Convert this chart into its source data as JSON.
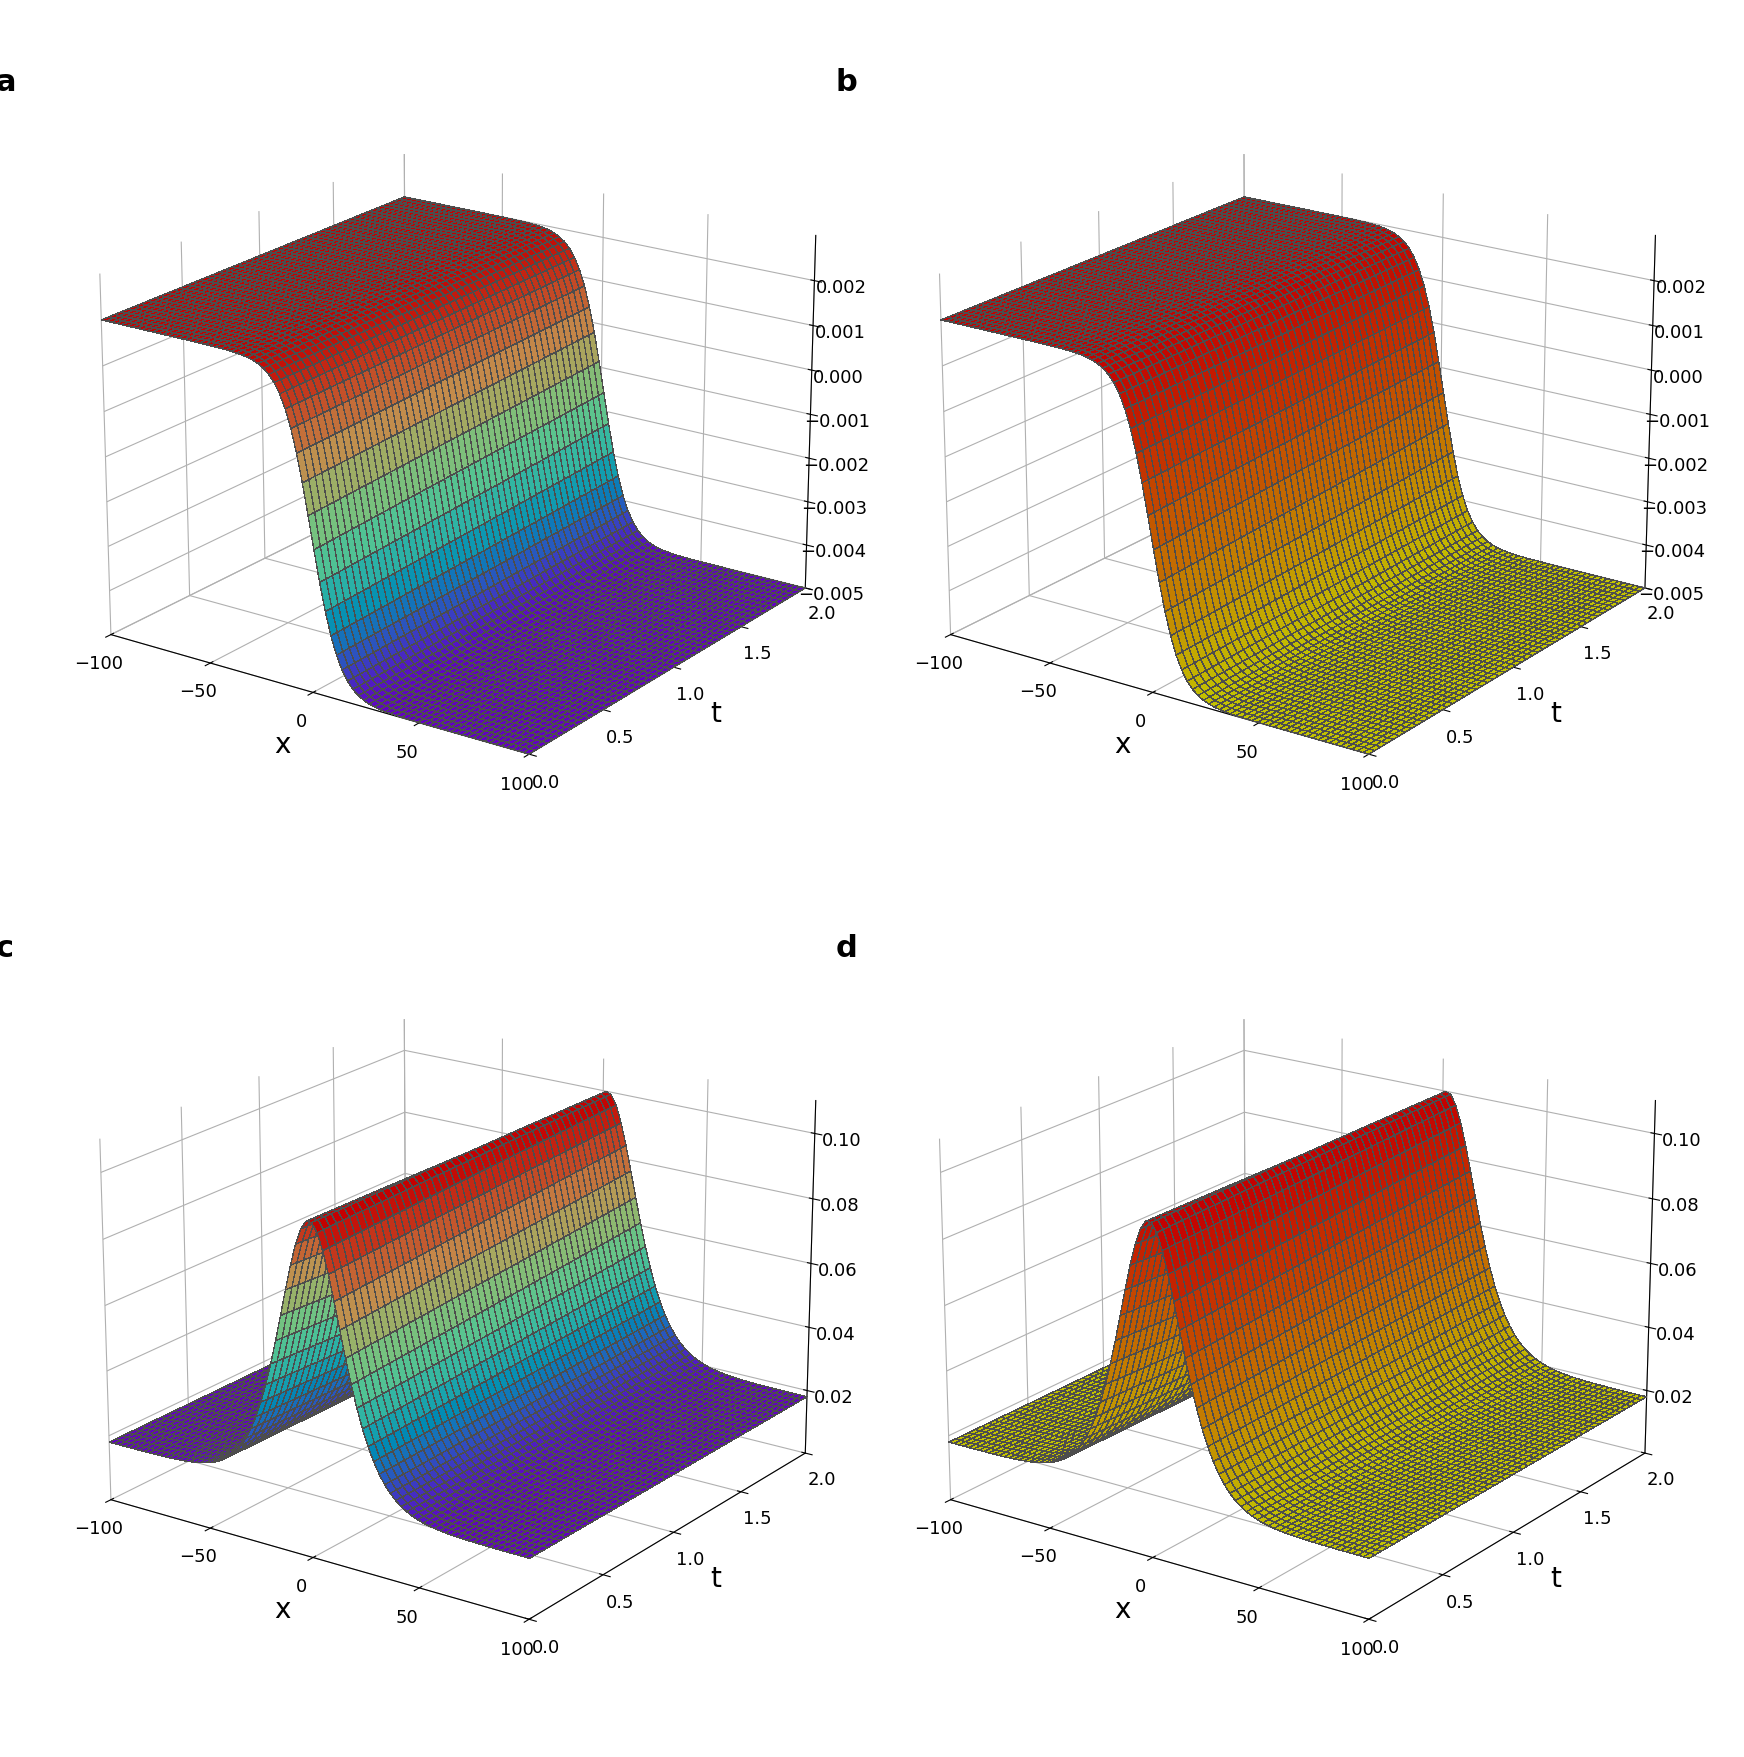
{
  "x_range": [
    -100,
    100
  ],
  "t_range": [
    0,
    2
  ],
  "nx": 50,
  "nt": 40,
  "b0": 0.01,
  "c2": 0.01,
  "panel_labels": [
    "a",
    "b",
    "c",
    "d"
  ],
  "xlabel": "x",
  "tlabel": "t",
  "yticks_ab": [
    -0.005,
    -0.004,
    -0.003,
    -0.002,
    -0.001,
    0,
    0.001,
    0.002
  ],
  "yticks_cd": [
    0.02,
    0.04,
    0.06,
    0.08,
    0.1
  ],
  "ylim_ab": [
    -0.005,
    0.003
  ],
  "ylim_cd": [
    0.0,
    0.11
  ],
  "xticks": [
    -100,
    -50,
    0,
    50,
    100
  ],
  "tticks": [
    0,
    0.5,
    1,
    1.5,
    2
  ],
  "cmap_a": "rainbow",
  "cmap_b": "plasma",
  "cmap_c": "rainbow",
  "cmap_d": "plasma",
  "label_fontsize": 20,
  "tick_fontsize": 13,
  "panel_label_fontsize": 22,
  "elev_ab": 20,
  "azim_ab": -60,
  "elev_cd": 20,
  "azim_cd": -60
}
